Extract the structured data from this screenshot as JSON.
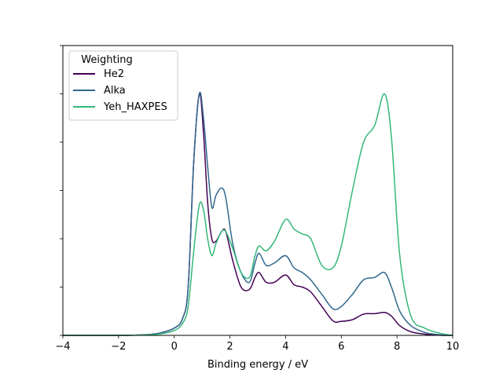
{
  "chart_data": {
    "type": "line",
    "title": "",
    "xlabel": "Binding energy / eV",
    "ylabel": "",
    "xlim": [
      -4,
      10
    ],
    "ylim": [
      0,
      1.2
    ],
    "xticks": [
      -4,
      -2,
      0,
      2,
      4,
      6,
      8,
      10
    ],
    "xtick_labels": [
      "−4",
      "−2",
      "0",
      "2",
      "4",
      "6",
      "8",
      "10"
    ],
    "yticks": [
      0,
      0.2,
      0.4,
      0.6,
      0.8,
      1.0,
      1.2
    ],
    "ytick_labels_visible": false,
    "grid": false,
    "legend": {
      "title": "Weighting",
      "position": "top-left"
    },
    "series": [
      {
        "name": "He2",
        "color": "#440154",
        "x": [
          -4,
          -2,
          -1,
          -0.5,
          0,
          0.3,
          0.5,
          0.7,
          0.9,
          1.05,
          1.2,
          1.35,
          1.5,
          1.7,
          1.85,
          2.1,
          2.4,
          2.7,
          2.9,
          3.05,
          3.3,
          3.6,
          4.0,
          4.3,
          4.6,
          4.9,
          5.3,
          5.7,
          6.0,
          6.4,
          6.8,
          7.2,
          7.55,
          7.8,
          8.1,
          8.5,
          9.0,
          9.5,
          10.0
        ],
        "y": [
          0.0,
          0.0,
          0.003,
          0.01,
          0.03,
          0.07,
          0.2,
          0.72,
          1.0,
          0.84,
          0.55,
          0.4,
          0.39,
          0.43,
          0.43,
          0.31,
          0.2,
          0.19,
          0.24,
          0.26,
          0.22,
          0.22,
          0.25,
          0.21,
          0.2,
          0.18,
          0.12,
          0.06,
          0.058,
          0.065,
          0.088,
          0.09,
          0.095,
          0.08,
          0.04,
          0.015,
          0.005,
          0.001,
          0.0
        ]
      },
      {
        "name": "Alka",
        "color": "#31688e",
        "x": [
          -4,
          -2,
          -1,
          -0.5,
          0,
          0.3,
          0.5,
          0.7,
          0.9,
          1.05,
          1.2,
          1.35,
          1.5,
          1.7,
          1.85,
          2.1,
          2.4,
          2.7,
          2.9,
          3.05,
          3.3,
          3.6,
          4.0,
          4.3,
          4.6,
          4.9,
          5.3,
          5.7,
          6.0,
          6.4,
          6.8,
          7.2,
          7.55,
          7.8,
          8.1,
          8.5,
          9.0,
          9.5,
          10.0
        ],
        "y": [
          0.0,
          0.0,
          0.003,
          0.01,
          0.03,
          0.07,
          0.2,
          0.72,
          1.0,
          0.9,
          0.7,
          0.53,
          0.58,
          0.61,
          0.57,
          0.38,
          0.26,
          0.22,
          0.3,
          0.34,
          0.29,
          0.3,
          0.33,
          0.28,
          0.26,
          0.23,
          0.17,
          0.11,
          0.12,
          0.17,
          0.23,
          0.24,
          0.26,
          0.2,
          0.1,
          0.04,
          0.012,
          0.003,
          0.0
        ]
      },
      {
        "name": "Yeh_HAXPES",
        "color": "#35b779",
        "x": [
          -4,
          -2,
          -1,
          -0.5,
          0,
          0.3,
          0.5,
          0.7,
          0.9,
          1.05,
          1.2,
          1.35,
          1.5,
          1.7,
          1.85,
          2.1,
          2.4,
          2.7,
          2.9,
          3.05,
          3.3,
          3.6,
          4.0,
          4.3,
          4.6,
          4.9,
          5.3,
          5.7,
          6.0,
          6.4,
          6.8,
          7.2,
          7.55,
          7.8,
          8.1,
          8.5,
          9.0,
          9.5,
          10.0
        ],
        "y": [
          0.0,
          0.0,
          0.002,
          0.006,
          0.02,
          0.05,
          0.12,
          0.35,
          0.54,
          0.52,
          0.4,
          0.33,
          0.38,
          0.43,
          0.43,
          0.36,
          0.26,
          0.24,
          0.33,
          0.37,
          0.35,
          0.39,
          0.48,
          0.44,
          0.42,
          0.4,
          0.29,
          0.28,
          0.37,
          0.6,
          0.8,
          0.87,
          1.0,
          0.82,
          0.33,
          0.08,
          0.03,
          0.01,
          0.0
        ]
      }
    ]
  }
}
